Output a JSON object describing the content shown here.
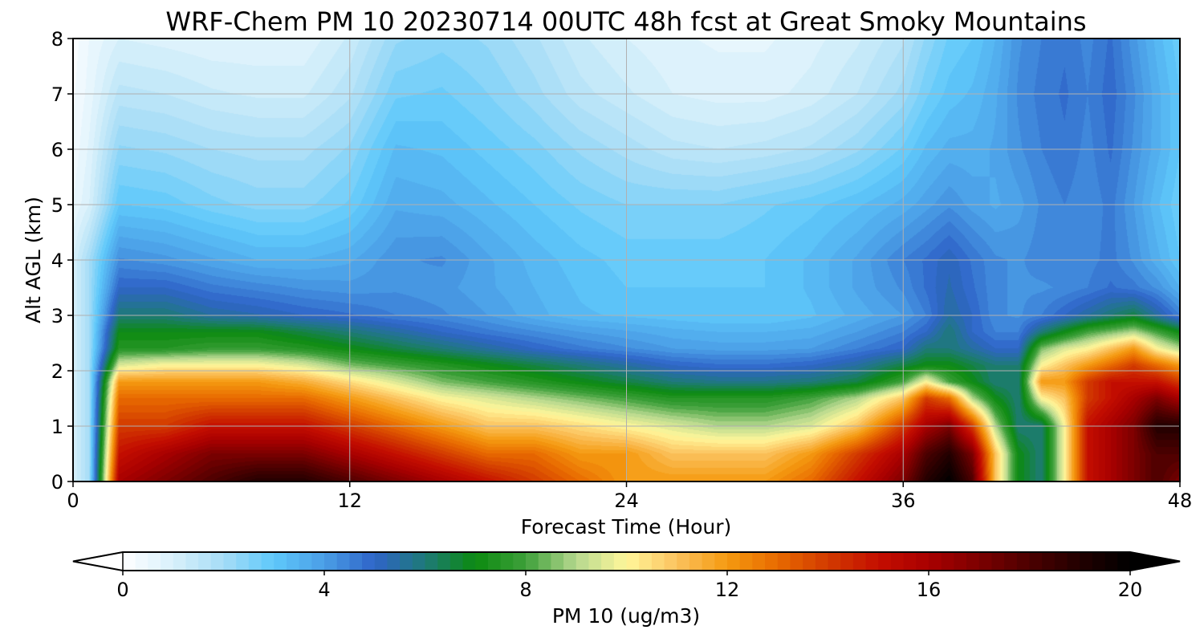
{
  "chart_data": {
    "type": "heatmap",
    "title": "WRF-Chem PM 10  20230714 00UTC 48h fcst at Great Smoky Mountains",
    "xlabel": "Forecast Time (Hour)",
    "ylabel": "Alt AGL (km)",
    "xlim": [
      0,
      48
    ],
    "ylim": [
      0,
      8
    ],
    "x_ticks": [
      "0",
      "12",
      "24",
      "36",
      "48"
    ],
    "y_ticks": [
      "0",
      "1",
      "2",
      "3",
      "4",
      "5",
      "6",
      "7",
      "8"
    ],
    "grid": true,
    "colorbar": {
      "label": "PM 10  (ug/m3)",
      "range": [
        0,
        20
      ],
      "ticks": [
        "0",
        "4",
        "8",
        "12",
        "16",
        "20"
      ],
      "extend": "both",
      "placement": "bottom",
      "color_stops": [
        [
          0,
          "#ffffff"
        ],
        [
          1,
          "#d8f0fb"
        ],
        [
          2,
          "#a6dcf6"
        ],
        [
          3,
          "#5ec8fb"
        ],
        [
          4,
          "#4a9ee6"
        ],
        [
          5,
          "#2f64c8"
        ],
        [
          6,
          "#1e7a78"
        ],
        [
          7,
          "#0c8a10"
        ],
        [
          8,
          "#3ea03a"
        ],
        [
          9,
          "#b6d88e"
        ],
        [
          10,
          "#fff79a"
        ],
        [
          11,
          "#fbc25e"
        ],
        [
          12,
          "#f59a10"
        ],
        [
          13,
          "#e86a00"
        ],
        [
          14,
          "#d23a00"
        ],
        [
          15,
          "#c40e00"
        ],
        [
          16,
          "#a80000"
        ],
        [
          17,
          "#7c0000"
        ],
        [
          18,
          "#4c0000"
        ],
        [
          19,
          "#220000"
        ],
        [
          20,
          "#000000"
        ]
      ]
    },
    "x": [
      0,
      0.7,
      2,
      4,
      6,
      8,
      10,
      12,
      14,
      16,
      18,
      20,
      22,
      24,
      26,
      28,
      30,
      32,
      34,
      36,
      37,
      38,
      39,
      40,
      41,
      42,
      43,
      44,
      45,
      46,
      47,
      48
    ],
    "y": [
      0,
      0.5,
      1.0,
      1.5,
      1.8,
      2.1,
      2.4,
      2.7,
      3.0,
      3.5,
      4.0,
      5.0,
      6.0,
      7.0,
      8.0
    ],
    "z_comment_rows": "PM10 concentration; rows correspond to y (altitude), columns to x (hour)",
    "z": [
      [
        1,
        2,
        16,
        17,
        18,
        19,
        19,
        18,
        17,
        16,
        15,
        14,
        13,
        12,
        12,
        12,
        12,
        13,
        15,
        17,
        19,
        20,
        18,
        11,
        7,
        6,
        10,
        15,
        16,
        17,
        18,
        17
      ],
      [
        1,
        2,
        15,
        16,
        17,
        17,
        17,
        16,
        15,
        14,
        13,
        13,
        12,
        12,
        11,
        11,
        11,
        12,
        14,
        16,
        18,
        19,
        17,
        11,
        7,
        6,
        10,
        15,
        16,
        17,
        18,
        18
      ],
      [
        1,
        2,
        14,
        14,
        15,
        15,
        15,
        14,
        13,
        12,
        11,
        11,
        10.5,
        10,
        9.5,
        9,
        9,
        9.5,
        11,
        14,
        16,
        17,
        14,
        9,
        6,
        6,
        10,
        15,
        16,
        17,
        19,
        19
      ],
      [
        1,
        2,
        13,
        13,
        13,
        13,
        13,
        12,
        11,
        10,
        9.5,
        9,
        8.5,
        8,
        7.5,
        7.5,
        7.5,
        8,
        9,
        11,
        14,
        13,
        9,
        7,
        6,
        10,
        11,
        14,
        15,
        16,
        17,
        16
      ],
      [
        1,
        2,
        12,
        12,
        12,
        12,
        11.5,
        10.5,
        9.5,
        8.5,
        8,
        7.5,
        7,
        6.5,
        6,
        5.8,
        5.8,
        6,
        6.5,
        8,
        10,
        8,
        7,
        6,
        6,
        12,
        12,
        14,
        15,
        15,
        15,
        14
      ],
      [
        1,
        2,
        9.5,
        10,
        10,
        10,
        9.5,
        8.5,
        8,
        7.5,
        7,
        6.5,
        6,
        5.5,
        5,
        4.8,
        4.8,
        5,
        5.5,
        6.5,
        7,
        7,
        6.5,
        6,
        6,
        10,
        11,
        12,
        13,
        14,
        13,
        12
      ],
      [
        1,
        2,
        7.5,
        7.5,
        7.8,
        7.8,
        7.5,
        7,
        6.5,
        6,
        5.5,
        5,
        4.6,
        4.3,
        4,
        3.9,
        3.9,
        4,
        4.5,
        5,
        6,
        6,
        5.5,
        5,
        5,
        8.5,
        9.5,
        10,
        11,
        12,
        10,
        9
      ],
      [
        1,
        2,
        7,
        7,
        7,
        7,
        6.5,
        6,
        5.5,
        5,
        4.6,
        4.3,
        4,
        3.8,
        3.6,
        3.5,
        3.5,
        3.6,
        4,
        4.5,
        5,
        6,
        5,
        4.5,
        4.5,
        6,
        7,
        8,
        8.5,
        9,
        8,
        7
      ],
      [
        1,
        2,
        6,
        6,
        5.5,
        5.3,
        5,
        4.8,
        4.5,
        4.3,
        4,
        3.6,
        3.3,
        3.2,
        3.1,
        3,
        3,
        3.2,
        3.6,
        4,
        4.5,
        5.5,
        5,
        4.3,
        4.2,
        4.5,
        5,
        5.5,
        6,
        6.5,
        5.5,
        4.5
      ],
      [
        1,
        2,
        5,
        5,
        4.6,
        4.4,
        4.2,
        4.1,
        4.2,
        4.1,
        3.8,
        3.5,
        3.2,
        3,
        3,
        3,
        3,
        3.3,
        3.8,
        4.3,
        4.8,
        5.3,
        4.8,
        4.3,
        4.2,
        4.2,
        4.3,
        4.5,
        4.8,
        4.6,
        4.2,
        3.5
      ],
      [
        1,
        2,
        4.3,
        4.1,
        3.8,
        3.5,
        3.5,
        3.7,
        4.2,
        4.3,
        3.8,
        3.4,
        3.1,
        2.9,
        2.9,
        2.9,
        3,
        3.3,
        3.8,
        4.5,
        4.8,
        5.2,
        4.7,
        4.3,
        4.2,
        4.4,
        4.4,
        4.4,
        4.6,
        4.2,
        3.6,
        3
      ],
      [
        0.5,
        1,
        3,
        2.9,
        2.6,
        2.4,
        2.4,
        2.8,
        3.7,
        3.6,
        3.3,
        3,
        2.7,
        2.5,
        2.5,
        2.5,
        2.7,
        2.9,
        3.2,
        3.6,
        3.9,
        4.2,
        3.9,
        3.7,
        3.9,
        4.3,
        4.5,
        4.3,
        4.6,
        4,
        3.3,
        2.8
      ],
      [
        0.3,
        0.8,
        2.3,
        2.2,
        2,
        1.9,
        1.9,
        2.3,
        3.3,
        3.2,
        2.9,
        2.6,
        2.2,
        1.9,
        1.6,
        1.5,
        1.6,
        1.8,
        2.2,
        2.8,
        3.3,
        3.6,
        3.6,
        3.8,
        4.2,
        4.5,
        4.7,
        4.4,
        4.8,
        4.2,
        3.6,
        3
      ],
      [
        0.2,
        0.6,
        1.6,
        1.5,
        1.3,
        1.2,
        1.2,
        1.7,
        2.7,
        2.8,
        2.5,
        2.1,
        1.6,
        1.3,
        1,
        0.9,
        0.9,
        1.1,
        1.5,
        2.1,
        2.7,
        3.1,
        3.3,
        3.7,
        4.3,
        4.6,
        4.8,
        4.5,
        4.9,
        4.3,
        3.6,
        3
      ],
      [
        0.1,
        0.5,
        1,
        0.9,
        0.8,
        0.8,
        0.8,
        1.3,
        2.2,
        2.4,
        2.2,
        1.8,
        1.3,
        1,
        0.8,
        0.7,
        0.7,
        0.9,
        1.2,
        1.7,
        2.3,
        2.8,
        3,
        3.5,
        4.2,
        4.5,
        4.7,
        4.4,
        4.8,
        4.1,
        3.4,
        2.8
      ]
    ]
  }
}
